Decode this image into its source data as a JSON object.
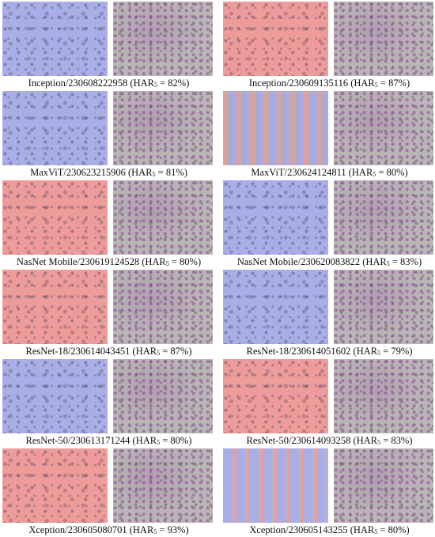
{
  "panels": [
    {
      "label": "Inception/230608222958 (HAR",
      "subscript": "5",
      "result": " = 82%)"
    },
    {
      "label": "Inception/230609135116 (HAR",
      "subscript": "5",
      "result": " = 87%)"
    },
    {
      "label": "MaxViT/230623215906 (HAR",
      "subscript": "5",
      "result": " = 81%)"
    },
    {
      "label": "MaxViT/230624124811 (HAR",
      "subscript": "5",
      "result": " = 80%)"
    },
    {
      "label": "NasNet Mobile/230619124528 (HAR",
      "subscript": "5",
      "result": " = 80%)"
    },
    {
      "label": "NasNet Mobile/230620083822 (HAR",
      "subscript": "5",
      "result": " = 83%)"
    },
    {
      "label": "ResNet-18/230614043451 (HAR",
      "subscript": "5",
      "result": " = 87%)"
    },
    {
      "label": "ResNet-18/230614051602 (HAR",
      "subscript": "5",
      "result": " = 79%)"
    },
    {
      "label": "ResNet-50/230613171244 (HAR",
      "subscript": "5",
      "result": " = 80%)"
    },
    {
      "label": "ResNet-50/230614093258 (HAR",
      "subscript": "5",
      "result": " = 83%)"
    },
    {
      "label": "Xception/230605080701 (HAR",
      "subscript": "5",
      "result": " = 93%)"
    },
    {
      "label": "Xception/230605143255 (HAR",
      "subscript": "5",
      "result": " = 80%)"
    }
  ]
}
